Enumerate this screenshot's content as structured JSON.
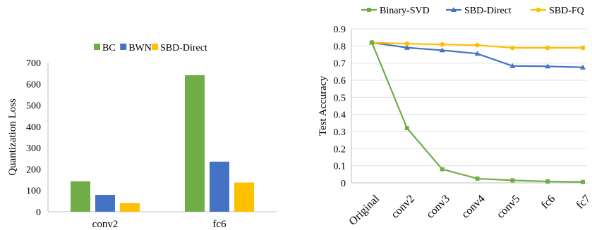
{
  "chart_data": [
    {
      "type": "bar",
      "categories": [
        "conv2",
        "fc6"
      ],
      "series": [
        {
          "name": "BC",
          "values": [
            143,
            641
          ],
          "color": "#70ad47"
        },
        {
          "name": "BWN",
          "values": [
            79,
            235
          ],
          "color": "#4472c4"
        },
        {
          "name": "SBD-Direct",
          "values": [
            40,
            137
          ],
          "color": "#ffc000"
        }
      ],
      "ylabel": "Quantization Loss",
      "ylim": [
        0,
        700
      ],
      "yticks": [
        0,
        100,
        200,
        300,
        400,
        500,
        600,
        700
      ],
      "grid": false,
      "legend_position": "top"
    },
    {
      "type": "line",
      "categories": [
        "Original",
        "conv2",
        "conv3",
        "conv4",
        "conv5",
        "fc6",
        "fc7"
      ],
      "series": [
        {
          "name": "Binary-SVD",
          "values": [
            0.82,
            0.32,
            0.08,
            0.025,
            0.015,
            0.008,
            0.005
          ],
          "color": "#70ad47",
          "marker": "square"
        },
        {
          "name": "SBD-Direct",
          "values": [
            0.82,
            0.79,
            0.775,
            0.755,
            0.683,
            0.681,
            0.675
          ],
          "color": "#4472c4",
          "marker": "triangle"
        },
        {
          "name": "SBD-FQ",
          "values": [
            0.82,
            0.813,
            0.809,
            0.805,
            0.789,
            0.789,
            0.789
          ],
          "color": "#ffc000",
          "marker": "circle"
        }
      ],
      "ylabel": "Test Accuracy",
      "ylim": [
        0,
        0.9
      ],
      "yticks": [
        "0",
        "0.1",
        "0.2",
        "0.3",
        "0.4",
        "0.5",
        "0.6",
        "0.7",
        "0.8",
        "0.9"
      ],
      "grid": true,
      "legend_position": "top"
    }
  ]
}
